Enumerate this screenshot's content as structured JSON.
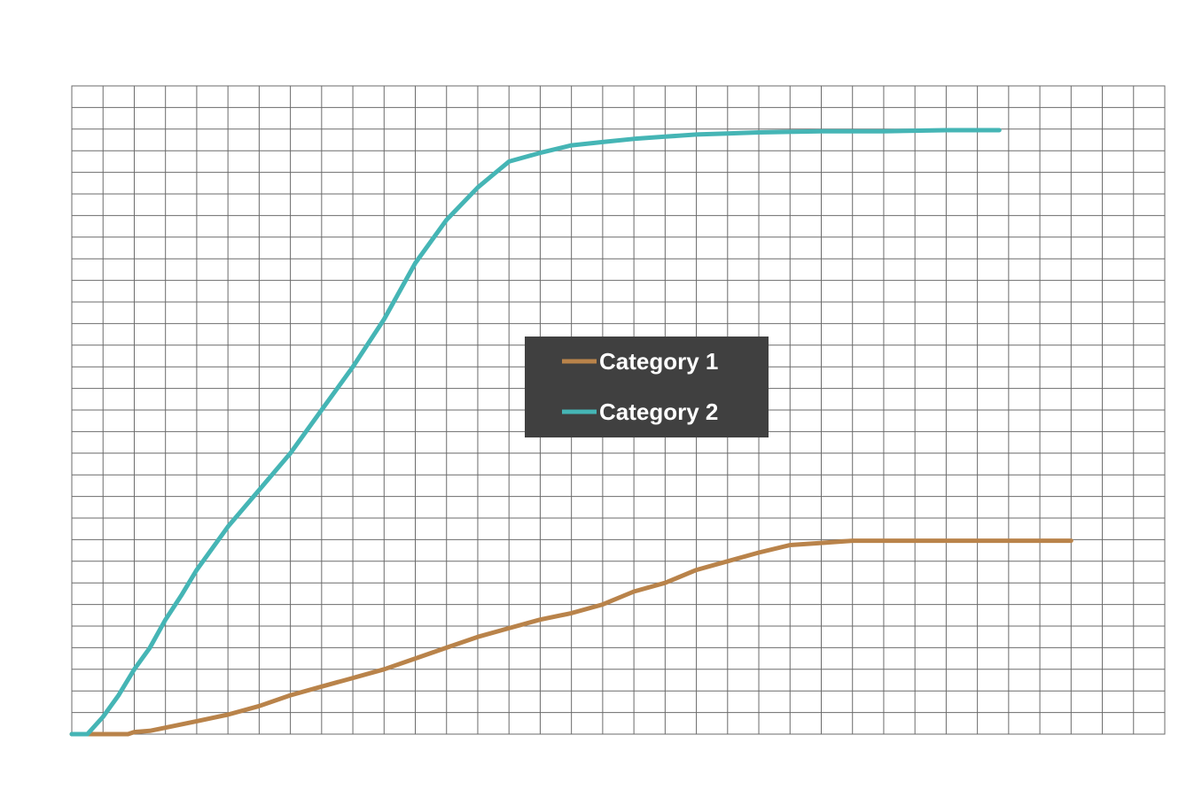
{
  "chart_data": {
    "type": "line",
    "grid": true,
    "legend_position": "center",
    "xlim": [
      0,
      35
    ],
    "ylim": [
      0,
      30
    ],
    "x_gridlines": 35,
    "y_gridlines": 30,
    "series": [
      {
        "name": "Category 1",
        "color": "#b9834a",
        "points": [
          [
            0,
            0
          ],
          [
            1,
            0
          ],
          [
            1.8,
            0
          ],
          [
            2,
            0.1
          ],
          [
            2.5,
            0.15
          ],
          [
            3,
            0.3
          ],
          [
            4,
            0.6
          ],
          [
            5,
            0.9
          ],
          [
            6,
            1.3
          ],
          [
            7,
            1.8
          ],
          [
            8,
            2.2
          ],
          [
            9,
            2.6
          ],
          [
            10,
            3.0
          ],
          [
            11,
            3.5
          ],
          [
            12,
            4.0
          ],
          [
            13,
            4.5
          ],
          [
            14,
            4.9
          ],
          [
            15,
            5.3
          ],
          [
            16,
            5.6
          ],
          [
            17,
            6.0
          ],
          [
            18,
            6.6
          ],
          [
            19,
            7.0
          ],
          [
            20,
            7.6
          ],
          [
            21,
            8.0
          ],
          [
            22,
            8.4
          ],
          [
            23,
            8.75
          ],
          [
            24,
            8.85
          ],
          [
            25,
            8.95
          ],
          [
            26,
            8.95
          ],
          [
            27,
            8.95
          ],
          [
            28,
            8.95
          ],
          [
            29,
            8.95
          ],
          [
            30,
            8.95
          ],
          [
            31,
            8.95
          ],
          [
            32,
            8.95
          ],
          [
            29.7,
            8.95
          ]
        ]
      },
      {
        "name": "Category 2",
        "color": "#45b5b5",
        "points": [
          [
            0,
            0
          ],
          [
            0.5,
            0
          ],
          [
            1,
            0.8
          ],
          [
            1.5,
            1.8
          ],
          [
            2,
            3.0
          ],
          [
            2.5,
            4.0
          ],
          [
            3,
            5.3
          ],
          [
            3.5,
            6.4
          ],
          [
            4,
            7.6
          ],
          [
            5,
            9.6
          ],
          [
            6,
            11.3
          ],
          [
            7,
            13.0
          ],
          [
            8,
            15.0
          ],
          [
            9,
            17.0
          ],
          [
            10,
            19.2
          ],
          [
            11,
            21.8
          ],
          [
            12,
            23.8
          ],
          [
            13,
            25.3
          ],
          [
            13.5,
            25.9
          ],
          [
            14,
            26.5
          ],
          [
            15,
            26.9
          ],
          [
            16,
            27.25
          ],
          [
            17,
            27.4
          ],
          [
            18,
            27.55
          ],
          [
            19,
            27.65
          ],
          [
            20,
            27.75
          ],
          [
            21,
            27.8
          ],
          [
            22,
            27.85
          ],
          [
            24,
            27.9
          ],
          [
            26,
            27.9
          ],
          [
            28,
            27.95
          ],
          [
            29.7,
            27.95
          ]
        ]
      }
    ]
  }
}
